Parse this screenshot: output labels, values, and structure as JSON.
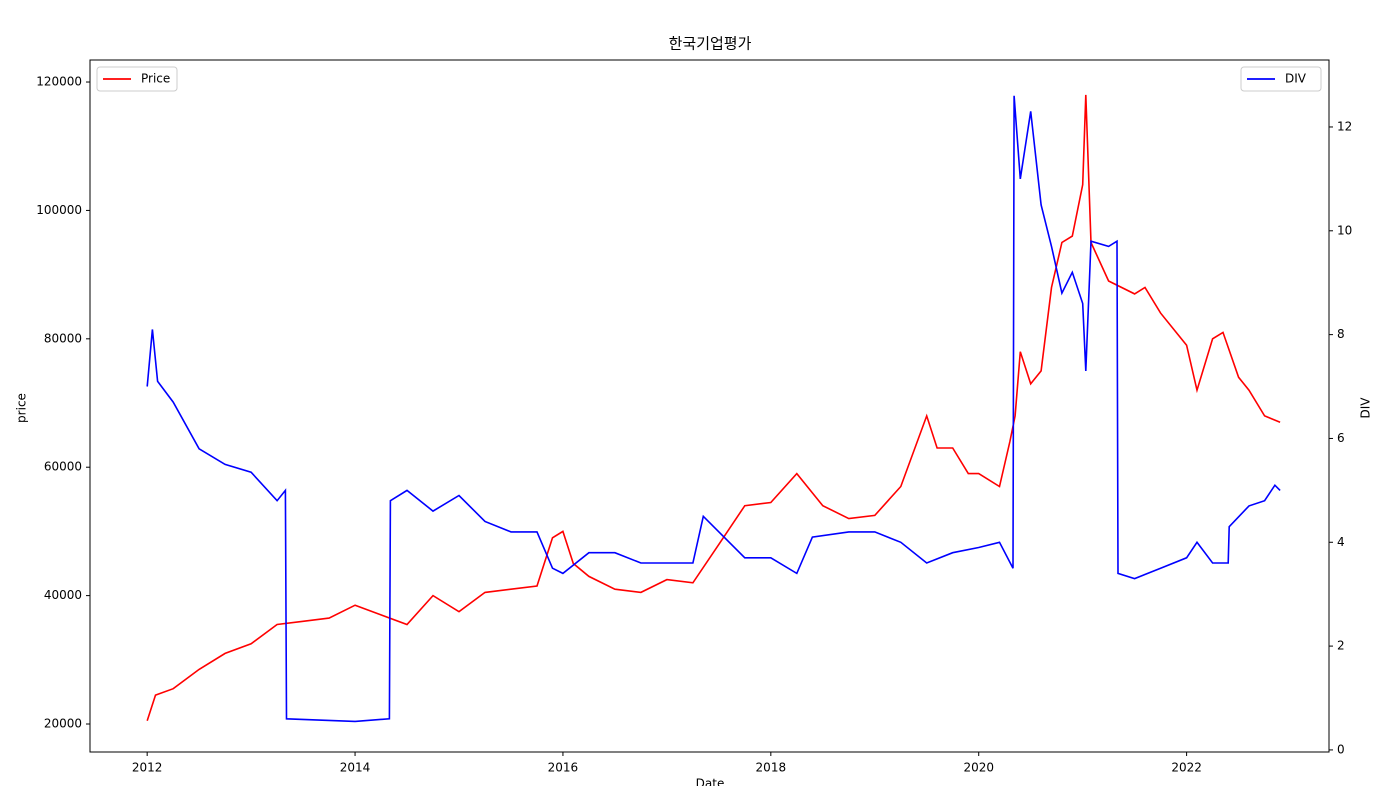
{
  "chart_data": {
    "type": "line",
    "title": "한국기업평가",
    "xlabel": "Date",
    "ylabel": "price",
    "y2label": "DIV",
    "xlim": [
      2011.45,
      2023.37
    ],
    "xticks": [
      2012,
      2014,
      2016,
      2018,
      2020,
      2022
    ],
    "ylim": [
      15640,
      123430
    ],
    "yticks": [
      20000,
      40000,
      60000,
      80000,
      100000,
      120000
    ],
    "y2lim": [
      -0.04,
      13.29
    ],
    "y2ticks": [
      0,
      2,
      4,
      6,
      8,
      10,
      12
    ],
    "legend": {
      "Price": "upper left",
      "DIV": "upper right"
    },
    "series": [
      {
        "name": "Price",
        "color": "#ff0000",
        "axis": "y",
        "x": [
          2012.0,
          2012.08,
          2012.25,
          2012.5,
          2012.75,
          2013.0,
          2013.25,
          2013.5,
          2013.75,
          2014.0,
          2014.25,
          2014.5,
          2014.75,
          2015.0,
          2015.25,
          2015.5,
          2015.75,
          2015.9,
          2016.0,
          2016.1,
          2016.25,
          2016.5,
          2016.75,
          2017.0,
          2017.25,
          2017.5,
          2017.75,
          2018.0,
          2018.25,
          2018.5,
          2018.75,
          2019.0,
          2019.25,
          2019.5,
          2019.6,
          2019.75,
          2019.9,
          2020.0,
          2020.2,
          2020.3,
          2020.35,
          2020.4,
          2020.5,
          2020.6,
          2020.7,
          2020.8,
          2020.9,
          2021.0,
          2021.03,
          2021.08,
          2021.25,
          2021.5,
          2021.6,
          2021.75,
          2021.9,
          2022.0,
          2022.1,
          2022.25,
          2022.35,
          2022.5,
          2022.6,
          2022.75,
          2022.9
        ],
        "values": [
          20500,
          24500,
          25500,
          28500,
          31000,
          32500,
          35500,
          36000,
          36500,
          38500,
          37000,
          35500,
          40000,
          37500,
          40500,
          41000,
          41500,
          49000,
          50000,
          45000,
          43000,
          41000,
          40500,
          42500,
          42000,
          48000,
          54000,
          54500,
          59000,
          54000,
          52000,
          52500,
          57000,
          68000,
          63000,
          63000,
          59000,
          59000,
          57000,
          64000,
          68000,
          78000,
          73000,
          75000,
          88000,
          95000,
          96000,
          104000,
          118000,
          95000,
          89000,
          87000,
          88000,
          84000,
          81000,
          79000,
          72000,
          80000,
          81000,
          74000,
          72000,
          68000,
          67000
        ]
      },
      {
        "name": "DIV",
        "color": "#0000ff",
        "axis": "y2",
        "x": [
          2012.0,
          2012.05,
          2012.1,
          2012.25,
          2012.5,
          2012.75,
          2013.0,
          2013.25,
          2013.33,
          2013.34,
          2014.0,
          2014.33,
          2014.34,
          2014.5,
          2014.75,
          2015.0,
          2015.25,
          2015.5,
          2015.75,
          2015.9,
          2016.0,
          2016.25,
          2016.5,
          2016.75,
          2017.0,
          2017.25,
          2017.35,
          2017.5,
          2017.75,
          2018.0,
          2018.25,
          2018.4,
          2018.75,
          2019.0,
          2019.25,
          2019.5,
          2019.75,
          2020.0,
          2020.2,
          2020.33,
          2020.34,
          2020.4,
          2020.5,
          2020.6,
          2020.7,
          2020.8,
          2020.9,
          2021.0,
          2021.03,
          2021.08,
          2021.25,
          2021.33,
          2021.34,
          2021.5,
          2021.75,
          2022.0,
          2022.1,
          2022.25,
          2022.4,
          2022.41,
          2022.6,
          2022.75,
          2022.85,
          2022.9
        ],
        "values": [
          7.0,
          8.1,
          7.1,
          6.7,
          5.8,
          5.5,
          5.35,
          4.8,
          5.0,
          0.6,
          0.55,
          0.6,
          4.8,
          5.0,
          4.6,
          4.9,
          4.4,
          4.2,
          4.2,
          3.5,
          3.4,
          3.8,
          3.8,
          3.6,
          3.6,
          3.6,
          4.5,
          4.2,
          3.7,
          3.7,
          3.4,
          4.1,
          4.2,
          4.2,
          4.0,
          3.6,
          3.8,
          3.9,
          4.0,
          3.5,
          12.6,
          11.0,
          12.3,
          10.5,
          9.7,
          8.8,
          9.2,
          8.6,
          7.3,
          9.8,
          9.7,
          9.8,
          3.4,
          3.3,
          3.5,
          3.7,
          4.0,
          3.6,
          3.6,
          4.3,
          4.7,
          4.8,
          5.1,
          5.0
        ]
      }
    ]
  }
}
